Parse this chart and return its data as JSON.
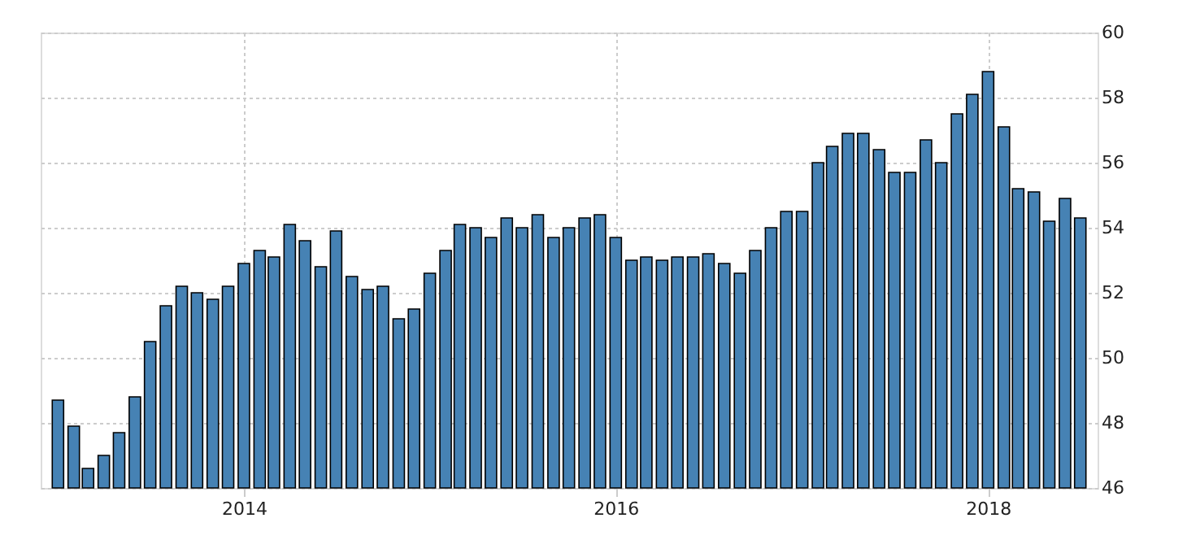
{
  "chart_data": {
    "type": "bar",
    "x": [
      "2013-01",
      "2013-02",
      "2013-03",
      "2013-04",
      "2013-05",
      "2013-06",
      "2013-07",
      "2013-08",
      "2013-09",
      "2013-10",
      "2013-11",
      "2013-12",
      "2014-01",
      "2014-02",
      "2014-03",
      "2014-04",
      "2014-05",
      "2014-06",
      "2014-07",
      "2014-08",
      "2014-09",
      "2014-10",
      "2014-11",
      "2014-12",
      "2015-01",
      "2015-02",
      "2015-03",
      "2015-04",
      "2015-05",
      "2015-06",
      "2015-07",
      "2015-08",
      "2015-09",
      "2015-10",
      "2015-11",
      "2015-12",
      "2016-01",
      "2016-02",
      "2016-03",
      "2016-04",
      "2016-05",
      "2016-06",
      "2016-07",
      "2016-08",
      "2016-09",
      "2016-10",
      "2016-11",
      "2016-12",
      "2017-01",
      "2017-02",
      "2017-03",
      "2017-04",
      "2017-05",
      "2017-06",
      "2017-07",
      "2017-08",
      "2017-09",
      "2017-10",
      "2017-11",
      "2017-12",
      "2018-01",
      "2018-02",
      "2018-03",
      "2018-04",
      "2018-05",
      "2018-06",
      "2018-07"
    ],
    "series": [
      {
        "color": "#4682b4",
        "values": [
          48.7,
          47.9,
          46.6,
          47.0,
          47.7,
          48.8,
          50.5,
          51.6,
          52.2,
          52.0,
          51.8,
          52.2,
          52.9,
          53.3,
          53.1,
          54.1,
          53.6,
          52.8,
          53.9,
          52.5,
          52.1,
          52.2,
          51.2,
          51.5,
          52.6,
          53.3,
          54.1,
          54.0,
          53.7,
          54.3,
          54.0,
          54.4,
          53.7,
          54.0,
          54.3,
          54.4,
          53.7,
          53.0,
          53.1,
          53.0,
          53.1,
          53.1,
          53.2,
          52.9,
          52.6,
          53.3,
          54.0,
          54.5,
          54.5,
          56.0,
          56.5,
          56.9,
          56.9,
          56.4,
          55.7,
          55.7,
          56.7,
          56.0,
          57.5,
          58.1,
          58.8,
          57.1,
          55.2,
          55.1,
          54.2,
          54.9,
          54.3
        ]
      }
    ],
    "xlim": [
      "2012-12-14",
      "2018-07-19"
    ],
    "xticks": [
      {
        "value": "2014-01-01",
        "label": "2014"
      },
      {
        "value": "2016-01-01",
        "label": "2016"
      },
      {
        "value": "2018-01-01",
        "label": "2018"
      }
    ],
    "ylim": [
      46,
      60
    ],
    "yticks": [
      46,
      48,
      50,
      52,
      54,
      56,
      58,
      60
    ],
    "grid": true
  }
}
